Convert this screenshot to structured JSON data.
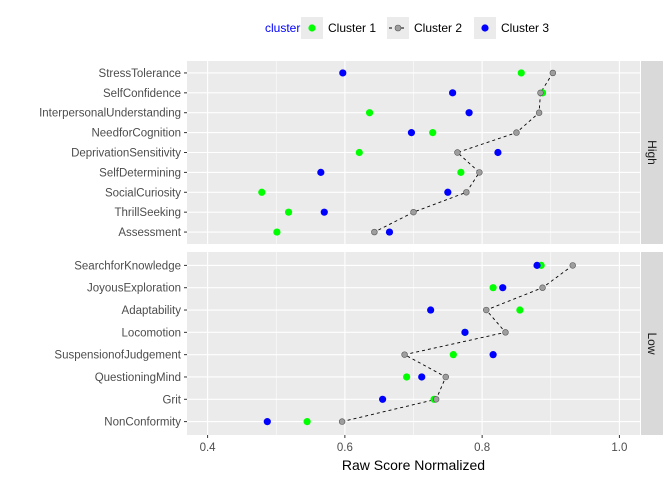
{
  "chart_data": {
    "type": "scatter",
    "xlabel": "Raw Score Normalized",
    "xlim": [
      0.37,
      1.03
    ],
    "xticks": [
      0.4,
      0.6,
      0.8,
      1.0
    ],
    "xtick_labels": [
      "0.4",
      "0.6",
      "0.8",
      "1.0"
    ],
    "grid": true,
    "legend": {
      "title": "cluster",
      "title_color": "#0000ff",
      "placement": "top",
      "entries": [
        "Cluster 1",
        "Cluster 2",
        "Cluster 3"
      ]
    },
    "series": [
      {
        "name": "Cluster 1",
        "color": "#00ff00",
        "connected": false
      },
      {
        "name": "Cluster 2",
        "color": "#9e9e9e",
        "connected": true,
        "line_style": "dashed"
      },
      {
        "name": "Cluster 3",
        "color": "#0000ff",
        "connected": false
      }
    ],
    "panels": [
      {
        "strip": "High",
        "categories": [
          "StressTolerance",
          "SelfConfidence",
          "InterpersonalUnderstanding",
          "NeedforCognition",
          "DeprivationSensitivity",
          "SelfDetermining",
          "SocialCuriosity",
          "ThrillSeeking",
          "Assessment"
        ],
        "values": {
          "Cluster 1": [
            0.857,
            0.888,
            0.636,
            0.728,
            0.621,
            0.769,
            0.479,
            0.518,
            0.501
          ],
          "Cluster 2": [
            0.903,
            0.885,
            0.883,
            0.85,
            0.764,
            0.796,
            0.777,
            0.7,
            0.643
          ],
          "Cluster 3": [
            0.597,
            0.757,
            0.781,
            0.697,
            0.823,
            0.565,
            0.75,
            0.57,
            0.665
          ]
        }
      },
      {
        "strip": "Low",
        "categories": [
          "SearchforKnowledge",
          "JoyousExploration",
          "Adaptability",
          "Locomotion",
          "SuspensionofJudgement",
          "QuestioningMind",
          "Grit",
          "NonConformity"
        ],
        "values": {
          "Cluster 1": [
            0.886,
            0.816,
            0.855,
            0.775,
            0.758,
            0.69,
            0.73,
            0.545
          ],
          "Cluster 2": [
            0.932,
            0.888,
            0.806,
            0.834,
            0.687,
            0.747,
            0.733,
            0.596
          ],
          "Cluster 3": [
            0.88,
            0.83,
            0.725,
            0.775,
            0.816,
            0.712,
            0.655,
            0.487
          ]
        }
      }
    ]
  }
}
